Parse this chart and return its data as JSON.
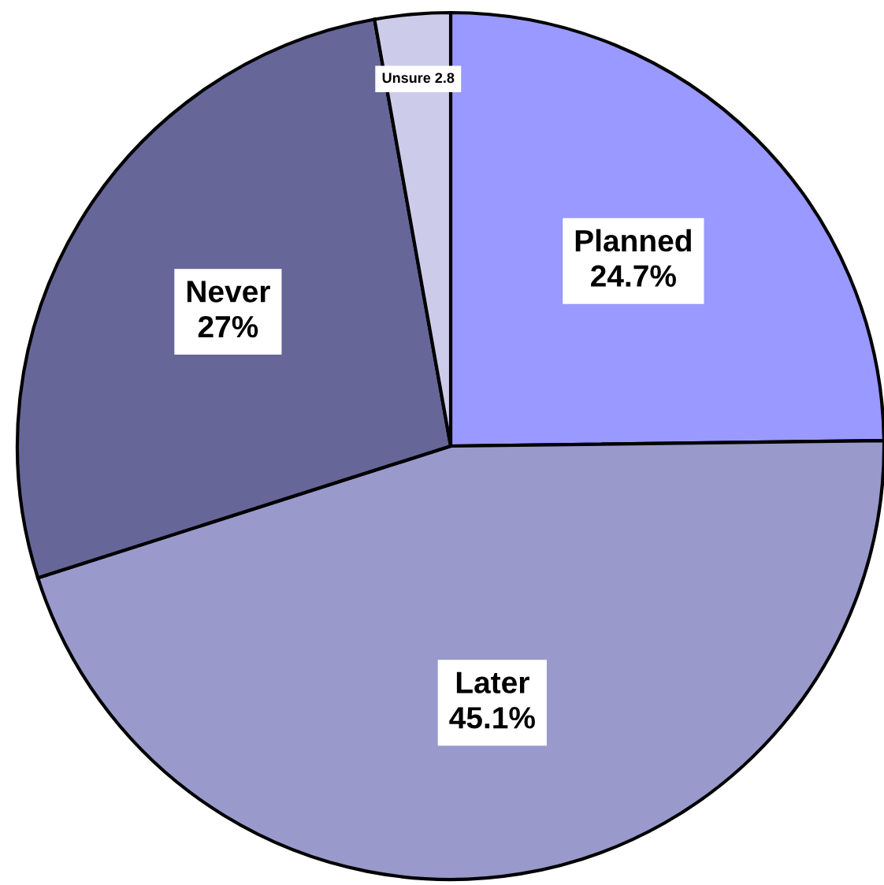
{
  "chart_data": {
    "type": "pie",
    "categories": [
      "Planned",
      "Later",
      "Never",
      "Unsure"
    ],
    "values": [
      24.7,
      45.1,
      27,
      2.8
    ],
    "colors": [
      "#9999ff",
      "#9999cc",
      "#666699",
      "#ccccea"
    ],
    "value_labels": [
      "24.7%",
      "45.1%",
      "27%",
      "2.8"
    ],
    "legend": false
  }
}
